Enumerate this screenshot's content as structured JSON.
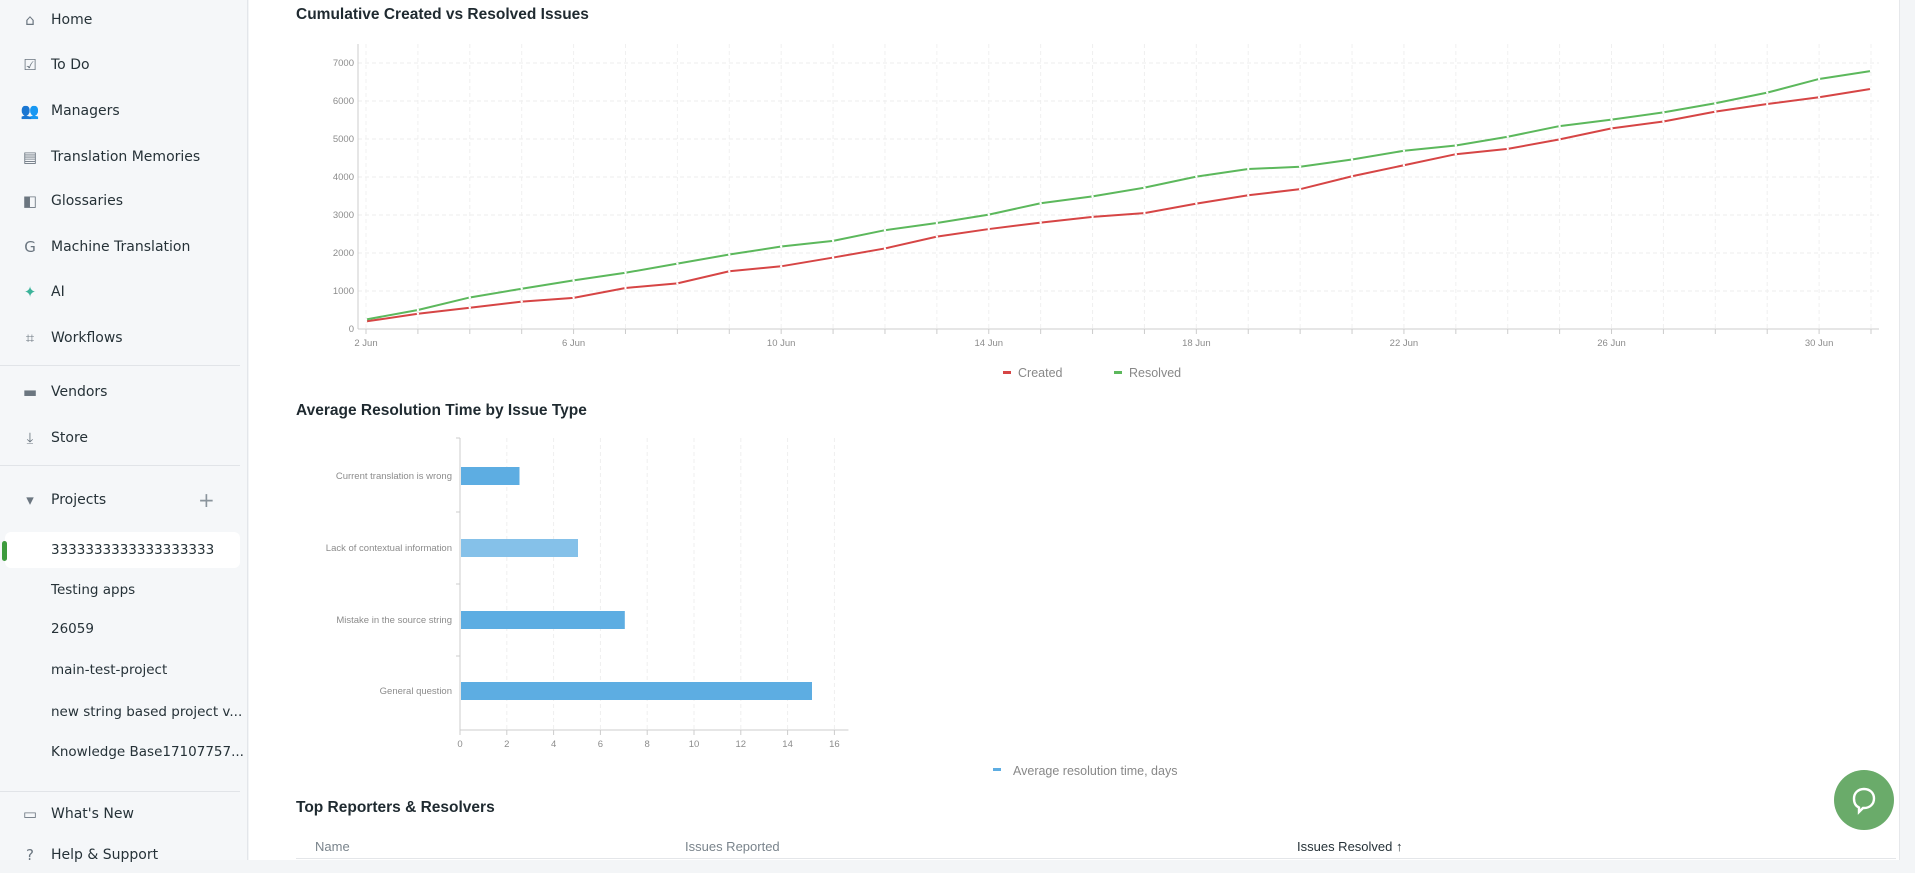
{
  "sidebar": {
    "items": [
      {
        "label": "Home",
        "icon": "home-icon",
        "glyph": "⌂"
      },
      {
        "label": "To Do",
        "icon": "calendar-check-icon",
        "glyph": "☑"
      },
      {
        "label": "Managers",
        "icon": "people-icon",
        "glyph": "👥"
      },
      {
        "label": "Translation Memories",
        "icon": "book-icon",
        "glyph": "▤"
      },
      {
        "label": "Glossaries",
        "icon": "glossary-icon",
        "glyph": "◧"
      },
      {
        "label": "Machine Translation",
        "icon": "translate-icon",
        "glyph": "G"
      },
      {
        "label": "AI",
        "icon": "ai-sparkle-icon",
        "glyph": "✦"
      },
      {
        "label": "Workflows",
        "icon": "workflow-icon",
        "glyph": "⌗"
      }
    ],
    "secondary": [
      {
        "label": "Vendors",
        "icon": "store-front-icon",
        "glyph": "▬"
      },
      {
        "label": "Store",
        "icon": "download-icon",
        "glyph": "⤓"
      }
    ],
    "projects_label": "Projects",
    "projects": [
      "3333333333333333333",
      "Testing apps",
      "26059",
      "main-test-project",
      "new string based project v...",
      "Knowledge Base17107757..."
    ],
    "active_project": 0,
    "bottom": [
      {
        "label": "What's New",
        "icon": "whats-new-icon",
        "glyph": "▭"
      },
      {
        "label": "Help & Support",
        "icon": "help-icon",
        "glyph": "?"
      }
    ]
  },
  "colors": {
    "created": "#d64545",
    "resolved": "#5cb85c",
    "bar": "#5dade2",
    "bar_highlight": "#85c1e9",
    "chat": "#6aab6a",
    "active": "#3d9b3d"
  },
  "chart_data": [
    {
      "type": "line",
      "title": "Cumulative Created vs Resolved Issues",
      "x": [
        "2 Jun",
        "3 Jun",
        "4 Jun",
        "5 Jun",
        "6 Jun",
        "7 Jun",
        "8 Jun",
        "9 Jun",
        "10 Jun",
        "11 Jun",
        "12 Jun",
        "13 Jun",
        "14 Jun",
        "15 Jun",
        "16 Jun",
        "17 Jun",
        "18 Jun",
        "19 Jun",
        "20 Jun",
        "21 Jun",
        "22 Jun",
        "23 Jun",
        "24 Jun",
        "25 Jun",
        "26 Jun",
        "27 Jun",
        "28 Jun",
        "29 Jun",
        "30 Jun",
        "31 Jun"
      ],
      "xticks": [
        "2 Jun",
        "6 Jun",
        "10 Jun",
        "14 Jun",
        "18 Jun",
        "22 Jun",
        "26 Jun",
        "30 Jun"
      ],
      "yticks": [
        0,
        1000,
        2000,
        3000,
        4000,
        5000,
        6000,
        7000
      ],
      "ylim": [
        0,
        7500
      ],
      "grid": true,
      "legend": "bottom",
      "series": [
        {
          "name": "Created",
          "values": [
            200,
            400,
            560,
            720,
            820,
            1080,
            1200,
            1520,
            1650,
            1880,
            2120,
            2430,
            2630,
            2800,
            2950,
            3050,
            3300,
            3520,
            3680,
            4020,
            4310,
            4600,
            4740,
            4990,
            5280,
            5460,
            5720,
            5920,
            6100,
            6320
          ]
        },
        {
          "name": "Resolved",
          "values": [
            250,
            500,
            830,
            1060,
            1280,
            1480,
            1720,
            1960,
            2170,
            2320,
            2600,
            2790,
            3010,
            3310,
            3490,
            3720,
            4010,
            4210,
            4270,
            4460,
            4690,
            4830,
            5060,
            5340,
            5510,
            5700,
            5940,
            6220,
            6580,
            6790
          ]
        }
      ]
    },
    {
      "type": "bar",
      "orientation": "horizontal",
      "title": "Average Resolution Time by Issue Type",
      "categories": [
        "Current translation is wrong",
        "Lack of contextual information",
        "Mistake in the source string",
        "General question"
      ],
      "values": [
        2.5,
        5,
        7,
        15
      ],
      "xticks": [
        0,
        2,
        4,
        6,
        8,
        10,
        12,
        14,
        16
      ],
      "xlim": [
        0,
        16.6
      ],
      "grid": true,
      "legend": "bottom",
      "highlighted": 1,
      "series_name": "Average resolution time, days"
    }
  ],
  "table": {
    "title": "Top Reporters & Resolvers",
    "columns": [
      "Name",
      "Issues Reported",
      "Issues Resolved"
    ],
    "sorted_column": 2,
    "sort_icon": "arrow-up-icon"
  },
  "chat": {
    "icon": "chat-bubble-icon"
  }
}
